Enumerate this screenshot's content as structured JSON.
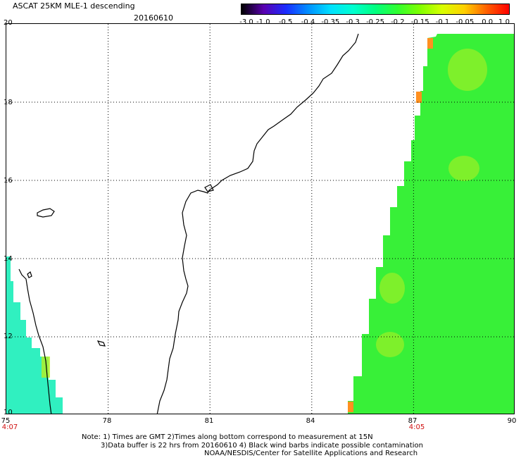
{
  "header": {
    "title": "ASCAT 25KM MLE-1 descending",
    "date": "20160610"
  },
  "colorbar": {
    "labels": [
      "-3.0",
      "-1.0",
      "-0.5",
      "-0.4",
      "-0.35",
      "-0.3",
      "-0.25",
      "-0.2",
      "-0.15",
      "-0.1",
      "-0.05",
      "0.0",
      "1.0"
    ],
    "colors": [
      "#000000",
      "#5a00b0",
      "#1a2cff",
      "#0090ff",
      "#00e0ff",
      "#00ffd0",
      "#00ff80",
      "#30ff30",
      "#80ff00",
      "#d8ff00",
      "#ffd000",
      "#ff6000",
      "#ff0000"
    ]
  },
  "axes": {
    "x_ticks": [
      "75",
      "78",
      "81",
      "84",
      "87",
      "90"
    ],
    "y_ticks": [
      "20",
      "18",
      "16",
      "14",
      "12",
      "10"
    ],
    "x_range": [
      75,
      90
    ],
    "y_range": [
      10,
      20
    ],
    "grid": "dotted"
  },
  "times": {
    "left": "4:07",
    "right": "4:05"
  },
  "notes": {
    "line1": "Note: 1) Times are GMT 2)Times along bottom correspond to measurement at 15N",
    "line2": "3)Data buffer is 22 hrs from 20160610 4) Black wind barbs indicate possible contamination",
    "line3": "NOAA/NESDIS/Center for Satellite Applications and Research"
  },
  "swaths": {
    "west_color": "#30f0c0",
    "east_color": "#38f038",
    "highlight_color": "#b8f020",
    "edge_color": "#ff9020"
  }
}
